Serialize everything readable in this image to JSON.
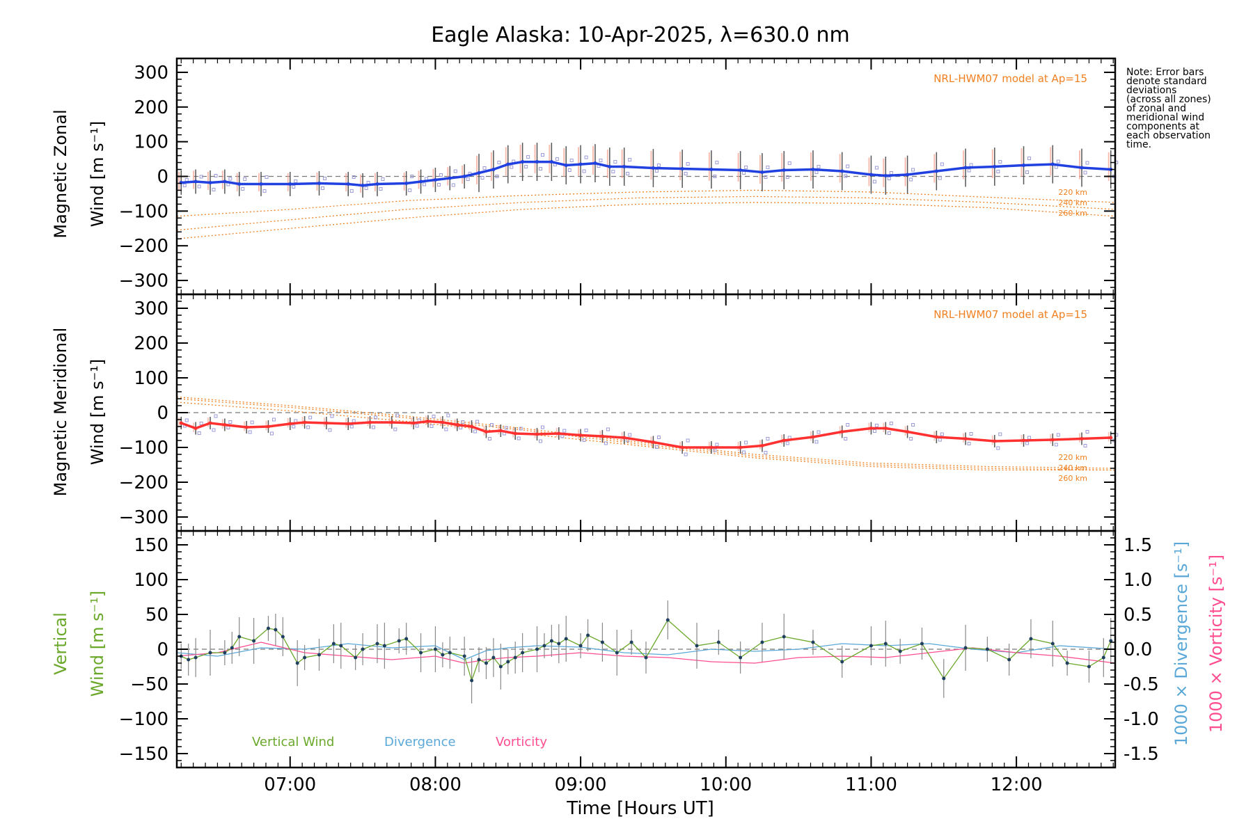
{
  "colors": {
    "zonal": "#2040e0",
    "meridional": "#ff3030",
    "vertical": "#6aa82a",
    "divergence": "#5aa8d8",
    "vorticity": "#ff4d90",
    "model": "#f08020",
    "scatter": "#9a9ad8",
    "errorbar": "#555555"
  },
  "chart_data": {
    "type": "line",
    "title": "Eagle Alaska: 10-Apr-2025, λ=630.0 nm",
    "xlabel": "Time [Hours UT]",
    "x_ticks": [
      "07:00",
      "08:00",
      "09:00",
      "10:00",
      "11:00",
      "12:00"
    ],
    "x_tick_hours": [
      7,
      8,
      9,
      10,
      11,
      12
    ],
    "xlim": [
      6.22,
      12.68
    ],
    "note": [
      "Note: Error bars",
      "denote standard",
      "deviations",
      "(across all zones)",
      "of zonal and",
      "meridional wind",
      "components at",
      "each observation",
      "time."
    ],
    "panels": [
      {
        "name": "zonal",
        "ylabel_line1": "Magnetic Zonal",
        "ylabel_line2": "Wind [m s⁻¹]",
        "ylim": [
          -340,
          340
        ],
        "y_ticks": [
          300,
          200,
          100,
          0,
          -100,
          -200,
          -300
        ],
        "model_label": "NRL-HWM07 model at Ap=15",
        "altitude_labels": [
          "220 km",
          "240 km",
          "260 km"
        ],
        "series_x": [
          6.25,
          6.35,
          6.45,
          6.55,
          6.65,
          6.8,
          7.0,
          7.2,
          7.4,
          7.5,
          7.6,
          7.8,
          7.9,
          8.0,
          8.1,
          8.2,
          8.3,
          8.4,
          8.5,
          8.6,
          8.7,
          8.8,
          8.9,
          9.0,
          9.1,
          9.2,
          9.3,
          9.5,
          9.7,
          9.9,
          10.1,
          10.25,
          10.4,
          10.6,
          10.8,
          11.0,
          11.1,
          11.25,
          11.45,
          11.65,
          11.85,
          12.05,
          12.25,
          12.45,
          12.65
        ],
        "values": [
          -18,
          -15,
          -18,
          -15,
          -22,
          -22,
          -22,
          -20,
          -22,
          -26,
          -22,
          -20,
          -15,
          -10,
          -5,
          0,
          10,
          20,
          35,
          42,
          42,
          42,
          32,
          35,
          38,
          28,
          28,
          24,
          22,
          20,
          18,
          12,
          18,
          20,
          15,
          5,
          2,
          5,
          15,
          25,
          28,
          32,
          35,
          25,
          20
        ],
        "model_220": [
          -115,
          -95,
          -70,
          -55,
          -45,
          -40,
          -45,
          -60,
          -75
        ],
        "model_240": [
          -155,
          -125,
          -95,
          -75,
          -62,
          -58,
          -62,
          -75,
          -95
        ],
        "model_260": [
          -180,
          -150,
          -120,
          -95,
          -80,
          -75,
          -78,
          -90,
          -115
        ],
        "model_x": [
          6.22,
          7.0,
          7.8,
          8.6,
          9.4,
          10.2,
          11.0,
          11.8,
          12.68
        ]
      },
      {
        "name": "meridional",
        "ylabel_line1": "Magnetic Meridional",
        "ylabel_line2": "Wind [m s⁻¹]",
        "ylim": [
          -340,
          340
        ],
        "y_ticks": [
          300,
          200,
          100,
          0,
          -100,
          -200,
          -300
        ],
        "model_label": "NRL-HWM07 model at Ap=15",
        "altitude_labels": [
          "220 km",
          "240 km",
          "260 km"
        ],
        "series_x": [
          6.25,
          6.35,
          6.45,
          6.55,
          6.7,
          6.85,
          7.0,
          7.1,
          7.25,
          7.4,
          7.55,
          7.7,
          7.85,
          7.95,
          8.05,
          8.15,
          8.25,
          8.35,
          8.45,
          8.55,
          8.7,
          8.85,
          9.0,
          9.15,
          9.3,
          9.5,
          9.7,
          9.9,
          10.1,
          10.25,
          10.4,
          10.6,
          10.8,
          11.0,
          11.1,
          11.25,
          11.45,
          11.65,
          11.85,
          12.05,
          12.25,
          12.45,
          12.65
        ],
        "values": [
          -30,
          -45,
          -30,
          -35,
          -42,
          -40,
          -32,
          -28,
          -30,
          -32,
          -28,
          -28,
          -30,
          -25,
          -28,
          -35,
          -40,
          -55,
          -52,
          -60,
          -62,
          -60,
          -65,
          -68,
          -72,
          -85,
          -100,
          -100,
          -100,
          -95,
          -80,
          -70,
          -55,
          -45,
          -45,
          -55,
          -70,
          -75,
          -82,
          -80,
          -78,
          -75,
          -72
        ],
        "model_220": [
          45,
          20,
          -10,
          -45,
          -85,
          -120,
          -145,
          -155,
          -160
        ],
        "model_240": [
          40,
          15,
          -15,
          -50,
          -90,
          -125,
          -150,
          -160,
          -165
        ],
        "model_260": [
          30,
          5,
          -25,
          -60,
          -95,
          -130,
          -155,
          -165,
          -165
        ],
        "model_x": [
          6.22,
          7.0,
          7.8,
          8.6,
          9.4,
          10.2,
          11.0,
          11.8,
          12.68
        ]
      },
      {
        "name": "vertical",
        "ylabel_line1": "Vertical",
        "ylabel_line2": "Wind [m s⁻¹]",
        "ylim": [
          -170,
          170
        ],
        "y_ticks": [
          150,
          100,
          50,
          0,
          -50,
          -100,
          -150
        ],
        "right_axis": {
          "ylim": [
            -1.7,
            1.7
          ],
          "ticks": [
            "1.5",
            "1.0",
            "0.5",
            "0.0",
            "-0.5",
            "-1.0",
            "-1.5"
          ],
          "tick_values": [
            1.5,
            1.0,
            0.5,
            0.0,
            -0.5,
            -1.0,
            -1.5
          ],
          "label_divergence": "1000 × Divergence [s⁻¹]",
          "label_vorticity": "1000 × Vorticity [s⁻¹]"
        },
        "legend": [
          "Vertical Wind",
          "Divergence",
          "Vorticity"
        ],
        "vertical_x": [
          6.25,
          6.3,
          6.35,
          6.45,
          6.55,
          6.6,
          6.65,
          6.75,
          6.85,
          6.9,
          6.95,
          7.05,
          7.1,
          7.2,
          7.3,
          7.35,
          7.45,
          7.5,
          7.6,
          7.65,
          7.75,
          7.8,
          7.9,
          8.0,
          8.05,
          8.1,
          8.2,
          8.25,
          8.3,
          8.35,
          8.4,
          8.45,
          8.5,
          8.55,
          8.6,
          8.7,
          8.75,
          8.8,
          8.85,
          8.9,
          9.0,
          9.05,
          9.15,
          9.25,
          9.35,
          9.45,
          9.6,
          9.8,
          9.95,
          10.1,
          10.25,
          10.4,
          10.6,
          10.8,
          11.0,
          11.1,
          11.2,
          11.35,
          11.5,
          11.65,
          11.8,
          11.95,
          12.1,
          12.25,
          12.35,
          12.5,
          12.6,
          12.65
        ],
        "vertical_values": [
          -10,
          -15,
          -12,
          -5,
          -5,
          2,
          18,
          12,
          30,
          28,
          18,
          -20,
          -12,
          -8,
          8,
          5,
          -12,
          0,
          8,
          5,
          12,
          15,
          -5,
          0,
          -8,
          -5,
          -10,
          -45,
          -15,
          -20,
          -12,
          -25,
          -18,
          -12,
          -5,
          0,
          5,
          12,
          8,
          15,
          5,
          20,
          10,
          -5,
          10,
          -12,
          42,
          5,
          10,
          -12,
          10,
          18,
          10,
          -18,
          5,
          8,
          -3,
          8,
          -42,
          2,
          0,
          -15,
          15,
          8,
          -20,
          -25,
          -12,
          12
        ],
        "divergence_x": [
          6.22,
          6.5,
          6.8,
          7.1,
          7.4,
          7.7,
          8.0,
          8.2,
          8.35,
          8.5,
          8.7,
          9.0,
          9.3,
          9.6,
          9.9,
          10.2,
          10.5,
          10.8,
          11.1,
          11.4,
          11.7,
          12.0,
          12.3,
          12.68
        ],
        "divergence_values": [
          -0.05,
          -0.1,
          0.02,
          0.0,
          0.08,
          0.02,
          0.05,
          -0.15,
          -0.02,
          0.02,
          0.05,
          0.03,
          -0.05,
          -0.08,
          0.0,
          -0.03,
          0.0,
          0.08,
          0.05,
          0.08,
          0.0,
          -0.05,
          0.05,
          0.0
        ],
        "vorticity_x": [
          6.22,
          6.5,
          6.8,
          7.1,
          7.4,
          7.7,
          8.0,
          8.2,
          8.35,
          8.5,
          8.7,
          9.0,
          9.3,
          9.6,
          9.9,
          10.2,
          10.5,
          10.8,
          11.1,
          11.4,
          11.7,
          12.0,
          12.3,
          12.68
        ],
        "vorticity_values": [
          -0.1,
          -0.05,
          0.1,
          -0.05,
          -0.1,
          -0.15,
          -0.1,
          -0.2,
          -0.15,
          -0.12,
          -0.1,
          -0.05,
          -0.1,
          -0.12,
          -0.18,
          -0.2,
          -0.12,
          -0.1,
          -0.12,
          -0.05,
          0.02,
          -0.05,
          -0.1,
          -0.2
        ]
      }
    ]
  }
}
